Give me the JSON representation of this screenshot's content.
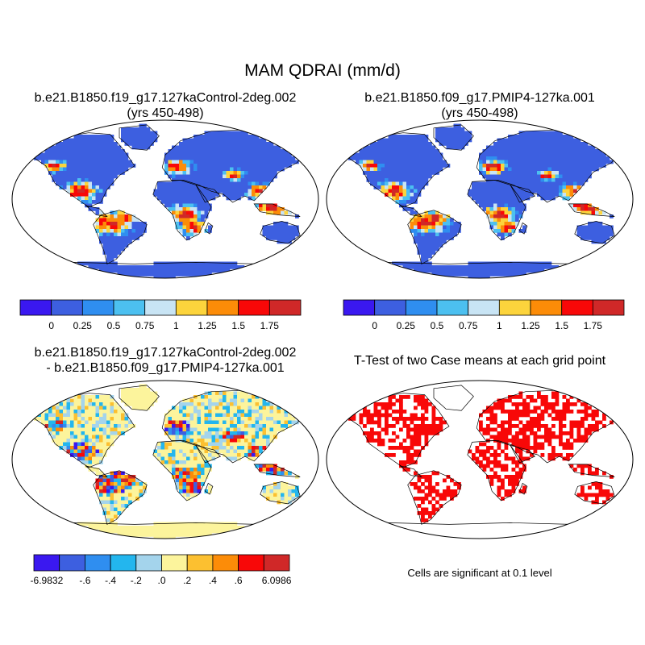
{
  "title": "MAM QDRAI (mm/d)",
  "panels": [
    {
      "title_line1": "b.e21.B1850.f19_g17.127kaControl-2deg.002",
      "title_line2": "(yrs 450-498)"
    },
    {
      "title_line1": "b.e21.B1850.f09_g17.PMIP4-127ka.001",
      "title_line2": "(yrs 450-498)"
    },
    {
      "title_line1": "b.e21.B1850.f19_g17.127kaControl-2deg.002",
      "title_line2": "- b.e21.B1850.f09_g17.PMIP4-127ka.001"
    },
    {
      "title_line1": "T-Test of two Case means at each grid point",
      "title_line2": ""
    }
  ],
  "colorbars": {
    "main": {
      "colors": [
        "#3a18f0",
        "#3d5fe0",
        "#2f8ef0",
        "#4cc0f0",
        "#c8e4f4",
        "#fcd43c",
        "#fc8c08",
        "#f80808",
        "#d02828"
      ],
      "labels": [
        "0",
        "0.25",
        "0.5",
        "0.75",
        "1",
        "1.25",
        "1.5",
        "1.75"
      ]
    },
    "diff": {
      "colors": [
        "#3a18f0",
        "#3d5fe0",
        "#2f8ef0",
        "#23b6ee",
        "#a4d4ec",
        "#fcf49c",
        "#fcc030",
        "#fc8c08",
        "#f80808",
        "#d02828"
      ],
      "labels": [
        "-6.9832",
        "-.6",
        "-.4",
        "-.2",
        ".0",
        ".2",
        ".4",
        ".6",
        "6.0986"
      ]
    }
  },
  "significance_note": "Cells are significant at 0.1 level",
  "map_colors": {
    "ocean": "#ffffff",
    "coast": "#000000",
    "land_low": "#3d5fe0",
    "land_high": "#f80808",
    "diff_land": "#fcf49c",
    "ttest_sig": "#f80808"
  }
}
